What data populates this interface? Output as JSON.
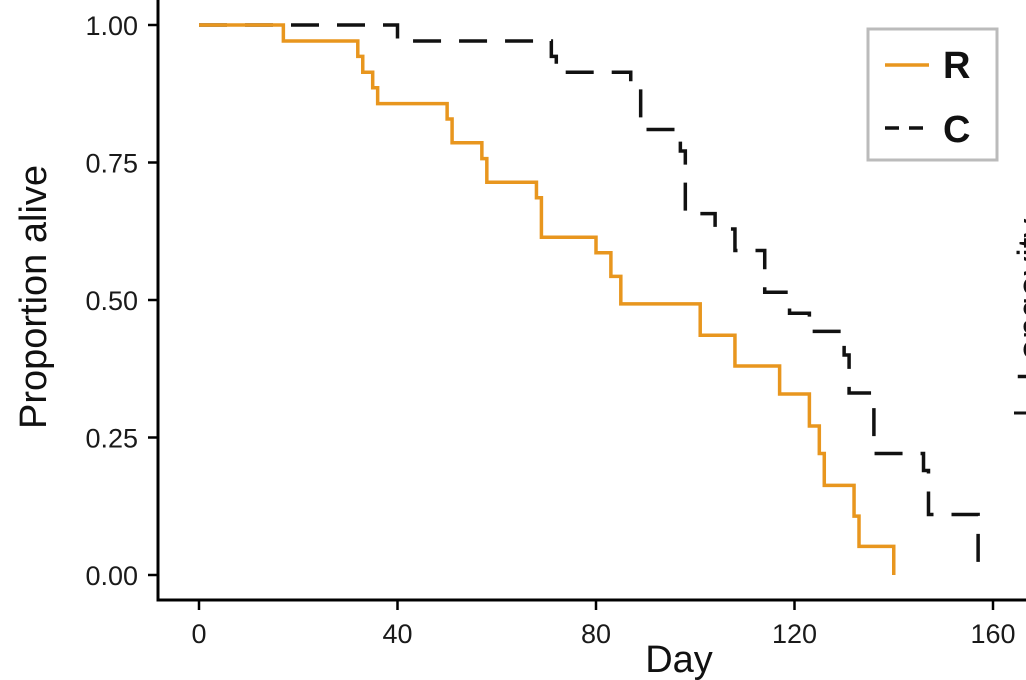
{
  "chart_data": {
    "type": "line",
    "title": "",
    "xlabel": "Day",
    "ylabel": "Proportion alive",
    "xlim": [
      0,
      160
    ],
    "ylim": [
      0,
      1
    ],
    "x_ticks": [
      "0",
      "40",
      "80",
      "120",
      "160"
    ],
    "y_ticks": [
      "0.00",
      "0.25",
      "0.50",
      "0.75",
      "1.00"
    ],
    "grid": false,
    "legend_position": "top-right",
    "side_text": "Longevity",
    "series": [
      {
        "name": "R",
        "color": "#e8961e",
        "style": "solid",
        "steps": [
          [
            0,
            1.0
          ],
          [
            17,
            0.971
          ],
          [
            32,
            0.943
          ],
          [
            33,
            0.914
          ],
          [
            35,
            0.886
          ],
          [
            36,
            0.857
          ],
          [
            50,
            0.829
          ],
          [
            51,
            0.786
          ],
          [
            57,
            0.757
          ],
          [
            58,
            0.714
          ],
          [
            68,
            0.686
          ],
          [
            69,
            0.614
          ],
          [
            80,
            0.586
          ],
          [
            83,
            0.543
          ],
          [
            85,
            0.493
          ],
          [
            101,
            0.436
          ],
          [
            108,
            0.38
          ],
          [
            117,
            0.329
          ],
          [
            123,
            0.271
          ],
          [
            125,
            0.221
          ],
          [
            126,
            0.163
          ],
          [
            132,
            0.107
          ],
          [
            133,
            0.052
          ],
          [
            140,
            0.0
          ]
        ]
      },
      {
        "name": "C",
        "color": "#111111",
        "style": "dashed",
        "steps": [
          [
            0,
            1.0
          ],
          [
            40,
            0.971
          ],
          [
            71,
            0.943
          ],
          [
            72,
            0.914
          ],
          [
            87,
            0.886
          ],
          [
            89,
            0.81
          ],
          [
            97,
            0.771
          ],
          [
            98,
            0.657
          ],
          [
            104,
            0.629
          ],
          [
            108,
            0.59
          ],
          [
            114,
            0.514
          ],
          [
            119,
            0.476
          ],
          [
            123,
            0.443
          ],
          [
            130,
            0.4
          ],
          [
            131,
            0.331
          ],
          [
            136,
            0.221
          ],
          [
            146,
            0.19
          ],
          [
            147,
            0.11
          ],
          [
            157,
            0.0
          ]
        ]
      }
    ]
  }
}
